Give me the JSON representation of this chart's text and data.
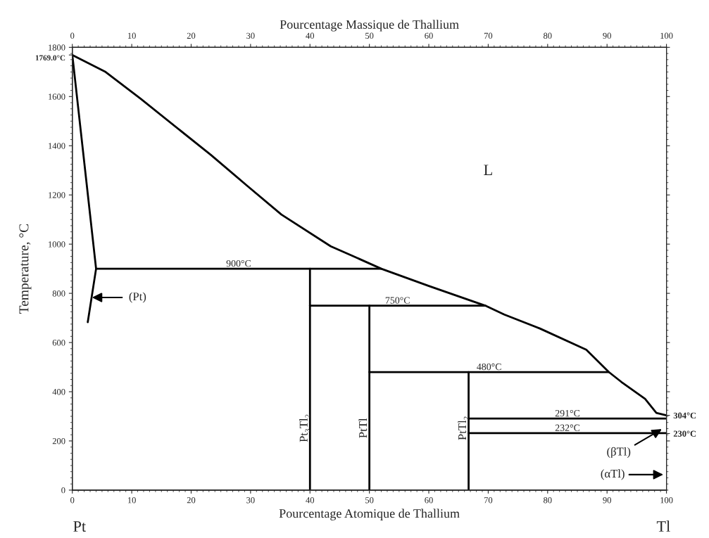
{
  "chart_data": {
    "type": "line",
    "xlabel": "Pourcentage Atomique de Thallium",
    "ylabel": "Temperature, °C",
    "x2label": "Pourcentage Massique de Thallium",
    "xlim": [
      0,
      100
    ],
    "xticks": [
      0,
      10,
      20,
      30,
      40,
      50,
      60,
      70,
      80,
      90,
      100
    ],
    "x2lim": [
      0,
      100
    ],
    "x2ticks": [
      0,
      10,
      20,
      30,
      40,
      50,
      60,
      70,
      80,
      90,
      100
    ],
    "ylim": [
      0,
      1800
    ],
    "yticks": [
      0,
      200,
      400,
      600,
      800,
      1000,
      1200,
      1400,
      1600,
      1800,
      {
        "value": 1769,
        "label": "1769.0°C"
      }
    ],
    "y2lim": [
      0,
      1800
    ],
    "y2ticks": [
      {
        "value": 200,
        "label": null
      },
      {
        "value": 230,
        "label": "230°C"
      },
      {
        "value": 304,
        "label": "304°C"
      },
      {
        "value": 400,
        "label": null
      },
      {
        "value": 600,
        "label": null
      },
      {
        "value": 800,
        "label": null
      },
      {
        "value": 1000,
        "label": null
      },
      {
        "value": 1200,
        "label": null
      },
      {
        "value": 1400,
        "label": null
      },
      {
        "value": 1600,
        "label": null
      },
      {
        "value": 1800,
        "label": null
      }
    ],
    "grid": false,
    "legend": false,
    "marker": "none",
    "line_style": "solid",
    "series": [
      {
        "color": "#000000",
        "x": [
          0,
          5.6,
          11.5,
          23.3,
          29.3,
          35.2,
          43.5,
          47,
          52,
          60,
          69.5,
          72.7,
          78.7,
          86.5,
          90.3,
          92.4,
          96.4,
          98.3,
          100
        ],
        "values": [
          1769,
          1700,
          1591,
          1363,
          1240,
          1120,
          991,
          954,
          900,
          830,
          750,
          714,
          657,
          571,
          480,
          440,
          371,
          314,
          304
        ]
      },
      {
        "color": "#000000",
        "x": [
          0,
          4,
          2.6
        ],
        "values": [
          1769,
          900,
          683
        ]
      },
      {
        "name": "900°C",
        "color": "#000000",
        "x": [
          4,
          52
        ],
        "values": [
          900,
          900
        ]
      },
      {
        "name": "750°C",
        "color": "#000000",
        "x": [
          40,
          69.5
        ],
        "values": [
          750,
          750
        ]
      },
      {
        "name": "480°C",
        "color": "#000000",
        "x": [
          50,
          90.3
        ],
        "values": [
          480,
          480
        ]
      },
      {
        "name": "291°C",
        "color": "#000000",
        "x": [
          66.7,
          100
        ],
        "values": [
          291,
          291
        ]
      },
      {
        "name": "232°C",
        "color": "#000000",
        "x": [
          66.7,
          100
        ],
        "values": [
          232,
          232
        ]
      },
      {
        "name": "Pt₃Tl₂",
        "color": "#000000",
        "x": [
          40,
          40
        ],
        "values": [
          0,
          900
        ]
      },
      {
        "name": "PtTl",
        "color": "#000000",
        "x": [
          50,
          50
        ],
        "values": [
          0,
          750
        ]
      },
      {
        "name": "PtTl₂",
        "color": "#000000",
        "x": [
          66.7,
          66.7
        ],
        "values": [
          0,
          480
        ]
      }
    ],
    "annotations": [
      "L",
      "(Pt)",
      "(βTl)",
      "(αTl)",
      "Pt",
      "Tl"
    ]
  }
}
